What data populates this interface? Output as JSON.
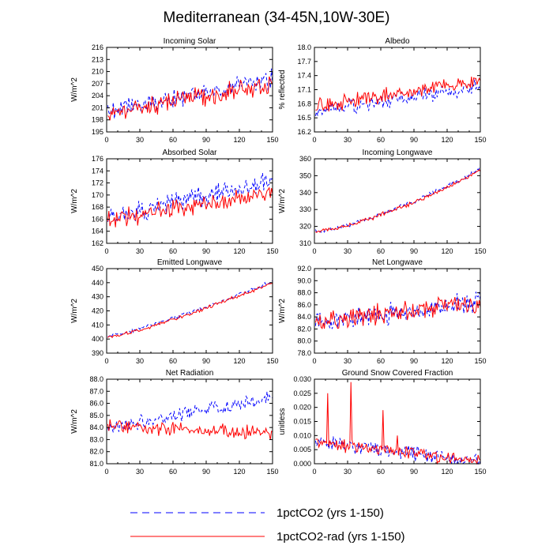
{
  "figure": {
    "title": "Mediterranean (34-45N,10W-30E)",
    "legend_placement": "bottom-center"
  },
  "colors": {
    "series_a": "#0000ff",
    "series_b": "#ff0000",
    "axis": "#000000"
  },
  "legend": [
    {
      "label": "1pctCO2 (yrs 1-150)",
      "style": "dashed",
      "color": "#0000ff"
    },
    {
      "label": "1pctCO2-rad (yrs 1-150)",
      "style": "solid",
      "color": "#ff0000"
    }
  ],
  "chart_data": [
    {
      "type": "line",
      "title": "Incoming Solar",
      "ylabel": "W/m^2",
      "xlim": [
        0,
        150
      ],
      "ylim": [
        195,
        216
      ],
      "xticks": [
        0,
        30,
        60,
        90,
        120,
        150
      ],
      "yticks": [
        "195",
        "198",
        "201",
        "204",
        "207",
        "210",
        "213",
        "216"
      ],
      "trend": {
        "a": [
          200,
          208
        ],
        "b": [
          200,
          207
        ]
      },
      "noise": 3,
      "seed": 1,
      "grid": false,
      "series": [
        {
          "name": "1pctCO2 (yrs 1-150)",
          "style": "dashed"
        },
        {
          "name": "1pctCO2-rad (yrs 1-150)",
          "style": "solid"
        }
      ]
    },
    {
      "type": "line",
      "title": "Albedo",
      "ylabel": "% reflected",
      "xlim": [
        0,
        150
      ],
      "ylim": [
        16.2,
        18.0
      ],
      "xticks": [
        0,
        30,
        60,
        90,
        120,
        150
      ],
      "yticks": [
        "16.2",
        "16.5",
        "16.8",
        "17.1",
        "17.4",
        "17.7",
        "18.0"
      ],
      "trend": {
        "a": [
          16.65,
          17.15
        ],
        "b": [
          16.75,
          17.3
        ]
      },
      "noise": 0.2,
      "seed": 2,
      "grid": false,
      "series": [
        {
          "name": "1pctCO2 (yrs 1-150)",
          "style": "dashed"
        },
        {
          "name": "1pctCO2-rad (yrs 1-150)",
          "style": "solid"
        }
      ]
    },
    {
      "type": "line",
      "title": "Absorbed Solar",
      "ylabel": "W/m^2",
      "xlim": [
        0,
        150
      ],
      "ylim": [
        162,
        176
      ],
      "xticks": [
        0,
        30,
        60,
        90,
        120,
        150
      ],
      "yticks": [
        "162",
        "164",
        "166",
        "168",
        "170",
        "172",
        "174",
        "176"
      ],
      "trend": {
        "a": [
          166.5,
          172
        ],
        "b": [
          166,
          170.5
        ]
      },
      "noise": 2,
      "seed": 3,
      "grid": false,
      "series": [
        {
          "name": "1pctCO2 (yrs 1-150)",
          "style": "dashed"
        },
        {
          "name": "1pctCO2-rad (yrs 1-150)",
          "style": "solid"
        }
      ]
    },
    {
      "type": "line",
      "title": "Incoming Longwave",
      "ylabel": "W/m^2",
      "xlim": [
        0,
        150
      ],
      "ylim": [
        310,
        360
      ],
      "xticks": [
        0,
        30,
        60,
        90,
        120,
        150
      ],
      "yticks": [
        "310",
        "320",
        "330",
        "340",
        "350",
        "360"
      ],
      "trend": {
        "a": [
          317,
          354
        ],
        "b": [
          317,
          353
        ]
      },
      "noise": 1.5,
      "seed": 4,
      "curve": 1.4,
      "grid": false,
      "series": [
        {
          "name": "1pctCO2 (yrs 1-150)",
          "style": "dashed"
        },
        {
          "name": "1pctCO2-rad (yrs 1-150)",
          "style": "solid"
        }
      ]
    },
    {
      "type": "line",
      "title": "Emitted Longwave",
      "ylabel": "W/m^2",
      "xlim": [
        0,
        150
      ],
      "ylim": [
        390,
        450
      ],
      "xticks": [
        0,
        30,
        60,
        90,
        120,
        150
      ],
      "yticks": [
        "390",
        "400",
        "410",
        "420",
        "430",
        "440",
        "450"
      ],
      "trend": {
        "a": [
          402,
          441
        ],
        "b": [
          401,
          440
        ]
      },
      "noise": 1.5,
      "seed": 5,
      "curve": 1.2,
      "grid": false,
      "series": [
        {
          "name": "1pctCO2 (yrs 1-150)",
          "style": "dashed"
        },
        {
          "name": "1pctCO2-rad (yrs 1-150)",
          "style": "solid"
        }
      ]
    },
    {
      "type": "line",
      "title": "Net Longwave",
      "ylabel": "W/m^2",
      "xlim": [
        0,
        150
      ],
      "ylim": [
        78.0,
        92.0
      ],
      "xticks": [
        0,
        30,
        60,
        90,
        120,
        150
      ],
      "yticks": [
        "78.0",
        "80.0",
        "82.0",
        "84.0",
        "86.0",
        "88.0",
        "90.0",
        "92.0"
      ],
      "trend": {
        "a": [
          83,
          86.5
        ],
        "b": [
          83,
          86.5
        ]
      },
      "noise": 2,
      "seed": 6,
      "grid": false,
      "series": [
        {
          "name": "1pctCO2 (yrs 1-150)",
          "style": "dashed"
        },
        {
          "name": "1pctCO2-rad (yrs 1-150)",
          "style": "solid"
        }
      ]
    },
    {
      "type": "line",
      "title": "Net Radiation",
      "ylabel": "W/m^2",
      "xlim": [
        0,
        150
      ],
      "ylim": [
        81.0,
        88.0
      ],
      "xticks": [
        0,
        30,
        60,
        90,
        120,
        150
      ],
      "yticks": [
        "81.0",
        "82.0",
        "83.0",
        "84.0",
        "85.0",
        "86.0",
        "87.0",
        "88.0"
      ],
      "trend": {
        "a": [
          84,
          86.5
        ],
        "b": [
          84.2,
          83.5
        ]
      },
      "noise": 0.7,
      "seed": 7,
      "grid": false,
      "series": [
        {
          "name": "1pctCO2 (yrs 1-150)",
          "style": "dashed"
        },
        {
          "name": "1pctCO2-rad (yrs 1-150)",
          "style": "solid"
        }
      ]
    },
    {
      "type": "line",
      "title": "Ground Snow Covered Fraction",
      "ylabel": "unitless",
      "xlim": [
        0,
        150
      ],
      "ylim": [
        0.0,
        0.03
      ],
      "xticks": [
        0,
        30,
        60,
        90,
        120,
        150
      ],
      "yticks": [
        "0.000",
        "0.005",
        "0.010",
        "0.015",
        "0.020",
        "0.025",
        "0.030"
      ],
      "trend": {
        "a": [
          0.008,
          0.0005
        ],
        "b": [
          0.008,
          0.0005
        ]
      },
      "noise": 0.003,
      "seed": 8,
      "spikes": [
        [
          12,
          0.025
        ],
        [
          33,
          0.029
        ],
        [
          62,
          0.019
        ],
        [
          75,
          0.01
        ]
      ],
      "nonneg": true,
      "grid": false,
      "series": [
        {
          "name": "1pctCO2 (yrs 1-150)",
          "style": "dashed"
        },
        {
          "name": "1pctCO2-rad (yrs 1-150)",
          "style": "solid"
        }
      ]
    }
  ]
}
